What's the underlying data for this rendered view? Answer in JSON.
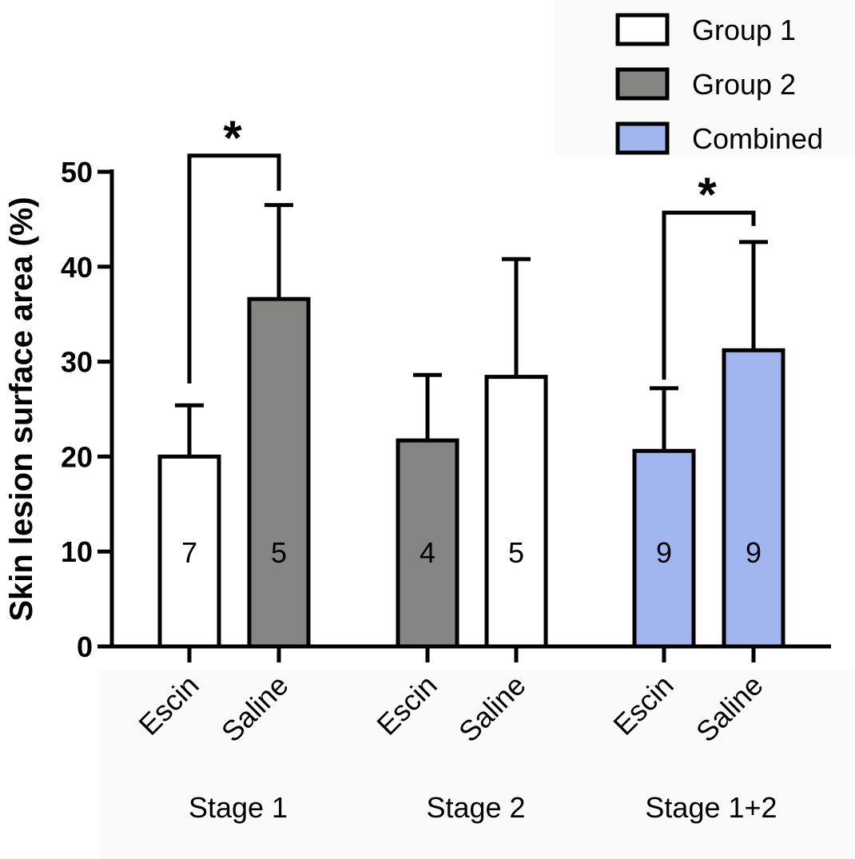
{
  "chart_data": {
    "type": "bar",
    "title": "",
    "ylabel": "Skin lesion surface area (%)",
    "xlabel": "",
    "ylim": [
      0,
      50
    ],
    "yticks": [
      0,
      10,
      20,
      30,
      40,
      50
    ],
    "groups": [
      {
        "name": "Stage 1",
        "bars": [
          {
            "category": "Escin",
            "series": "Group 1",
            "mean": 20,
            "error": 5.4,
            "n": "7"
          },
          {
            "category": "Saline",
            "series": "Group 2",
            "mean": 36.6,
            "error": 9.9,
            "n": "5"
          }
        ],
        "significance": "*"
      },
      {
        "name": "Stage 2",
        "bars": [
          {
            "category": "Escin",
            "series": "Group 2",
            "mean": 21.7,
            "error": 6.9,
            "n": "4"
          },
          {
            "category": "Saline",
            "series": "Group 1",
            "mean": 28.4,
            "error": 12.4,
            "n": "5"
          }
        ],
        "significance": ""
      },
      {
        "name": "Stage 1+2",
        "bars": [
          {
            "category": "Escin",
            "series": "Combined",
            "mean": 20.6,
            "error": 6.6,
            "n": "9"
          },
          {
            "category": "Saline",
            "series": "Combined",
            "mean": 31.2,
            "error": 11.4,
            "n": "9"
          }
        ],
        "significance": "*"
      }
    ],
    "legend": {
      "position": "top-right",
      "entries": [
        {
          "label": "Group 1",
          "color": "#ffffff"
        },
        {
          "label": "Group 2",
          "color": "#858583"
        },
        {
          "label": "Combined",
          "color": "#a1b5ef"
        }
      ]
    }
  }
}
